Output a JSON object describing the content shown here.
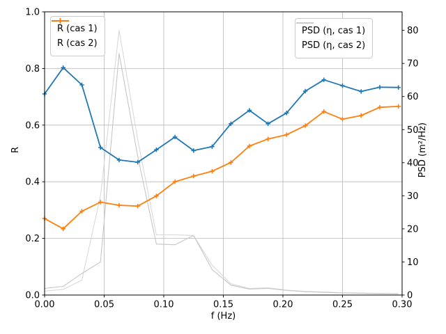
{
  "chart_data": {
    "type": "line",
    "title": "",
    "xlabel": "f (Hz)",
    "ylabel_left": "R",
    "ylabel_right": "PSD (m²/Hz)",
    "xlim": [
      0.0,
      0.3
    ],
    "ylim_left": [
      0.0,
      1.0
    ],
    "ylim_right": [
      0.0,
      85.6
    ],
    "grid": true,
    "xticks": {
      "values": [
        0.0,
        0.05,
        0.1,
        0.15,
        0.2,
        0.25,
        0.3
      ],
      "labels": [
        "0.00",
        "0.05",
        "0.10",
        "0.15",
        "0.20",
        "0.25",
        "0.30"
      ]
    },
    "yticks_left": {
      "values": [
        0.0,
        0.2,
        0.4,
        0.6,
        0.8,
        1.0
      ],
      "labels": [
        "0.0",
        "0.2",
        "0.4",
        "0.6",
        "0.8",
        "1.0"
      ]
    },
    "yticks_right": {
      "values": [
        0,
        10,
        20,
        30,
        40,
        50,
        60,
        70,
        80
      ],
      "labels": [
        "0",
        "10",
        "20",
        "30",
        "40",
        "50",
        "60",
        "70",
        "80"
      ]
    },
    "x": [
      0.0,
      0.0156,
      0.0313,
      0.0469,
      0.0625,
      0.0781,
      0.0938,
      0.1094,
      0.125,
      0.1406,
      0.1563,
      0.1719,
      0.1875,
      0.2031,
      0.2188,
      0.2344,
      0.25,
      0.2656,
      0.2813,
      0.2969
    ],
    "series": [
      {
        "name": "R (cas 1)",
        "axis": "left",
        "color": "#1f77b4",
        "marker": "plus",
        "linewidth": 1.8,
        "values": [
          0.71,
          0.803,
          0.742,
          0.521,
          0.477,
          0.469,
          0.513,
          0.558,
          0.51,
          0.524,
          0.605,
          0.652,
          0.605,
          0.643,
          0.72,
          0.76,
          0.739,
          0.719,
          0.734,
          0.733
        ]
      },
      {
        "name": "R (cas 2)",
        "axis": "left",
        "color": "#ff7f0e",
        "marker": "plus",
        "linewidth": 1.8,
        "values": [
          0.27,
          0.234,
          0.296,
          0.328,
          0.317,
          0.314,
          0.35,
          0.4,
          0.42,
          0.437,
          0.468,
          0.526,
          0.551,
          0.566,
          0.598,
          0.648,
          0.621,
          0.634,
          0.663,
          0.666
        ]
      },
      {
        "name": "PSD (η, cas 1)",
        "axis": "right",
        "color": "#d9d9d9",
        "marker": "none",
        "linewidth": 1.1,
        "values": [
          1.2,
          1.7,
          4.5,
          30.0,
          80.0,
          47.0,
          18.2,
          18.2,
          18.0,
          9.0,
          3.4,
          2.0,
          2.2,
          1.5,
          1.1,
          0.9,
          0.7,
          0.6,
          0.5,
          0.45
        ]
      },
      {
        "name": "PSD (η, cas 2)",
        "axis": "right",
        "color": "#c6c6c6",
        "marker": "none",
        "linewidth": 1.1,
        "values": [
          2.0,
          2.6,
          6.5,
          10.0,
          73.0,
          42.0,
          15.4,
          15.2,
          18.0,
          7.7,
          3.0,
          1.8,
          2.0,
          1.4,
          1.0,
          0.8,
          0.65,
          0.55,
          0.45,
          0.4
        ]
      }
    ],
    "legends": [
      {
        "position": "upper-left",
        "entries": [
          "R (cas 1)",
          "R (cas 2)"
        ]
      },
      {
        "position": "upper-right",
        "entries": [
          "PSD (η, cas 1)",
          "PSD (η, cas 2)"
        ]
      }
    ],
    "colors": {
      "grid": "#b8b8b8",
      "spine": "#000000"
    }
  }
}
